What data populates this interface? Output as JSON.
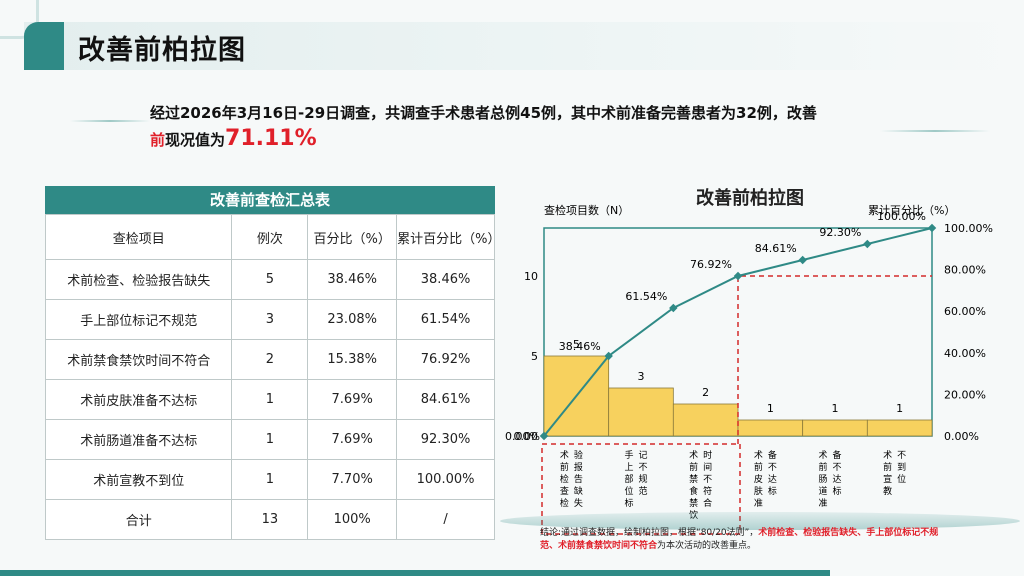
{
  "slide": {
    "title": "改善前柏拉图",
    "intro_main": "经过2026年3月16日-29日调查，共调查手术患者总例45例，其中术前准备完善患者为32例，改善",
    "intro_red": "前",
    "intro_mid": "现况值为",
    "intro_value": "71.11%"
  },
  "table": {
    "caption": "改善前查检汇总表",
    "headers": [
      "查检项目",
      "例次",
      "百分比（%）",
      "累计百分比（%）"
    ],
    "rows": [
      [
        "术前检查、检验报告缺失",
        "5",
        "38.46%",
        "38.46%"
      ],
      [
        "手上部位标记不规范",
        "3",
        "23.08%",
        "61.54%"
      ],
      [
        "术前禁食禁饮时间不符合",
        "2",
        "15.38%",
        "76.92%"
      ],
      [
        "术前皮肤准备不达标",
        "1",
        "7.69%",
        "84.61%"
      ],
      [
        "术前肠道准备不达标",
        "1",
        "7.69%",
        "92.30%"
      ],
      [
        "术前宣教不到位",
        "1",
        "7.70%",
        "100.00%"
      ],
      [
        "合计",
        "13",
        "100%",
        "/"
      ]
    ]
  },
  "chart_data": {
    "type": "bar",
    "title": "改善前柏拉图",
    "ylabel": "查检项目数（N）",
    "y2label": "累计百分比（%）",
    "categories": [
      "术前检查、检验报告缺失",
      "手上部位标记不规范",
      "术前禁食禁饮时间不符合",
      "术前皮肤准备不达标",
      "术前肠道准备不达标",
      "术前宣教不到位"
    ],
    "values": [
      5,
      3,
      2,
      1,
      1,
      1
    ],
    "cumulative_pct": [
      0,
      38.46,
      61.54,
      76.92,
      84.61,
      92.3,
      100.0
    ],
    "cumulative_labels": [
      "0.00%",
      "38.46%",
      "61.54%",
      "76.92%",
      "84.61%",
      "92.30%",
      "100.00%"
    ],
    "ylim": [
      0,
      13
    ],
    "y_ticks": [
      "0.00",
      "5",
      "10"
    ],
    "y2lim": [
      0,
      100
    ],
    "y2_ticks": [
      "0.00%",
      "20.00%",
      "40.00%",
      "60.00%",
      "80.00%",
      "100.00%"
    ],
    "threshold_pct": 76.92,
    "bar_color": "#f7d15e",
    "line_color": "#2f8a86",
    "highlight_color": "#d42a2a"
  },
  "conclusion": {
    "prefix": "结论:通过调查数据，绘制柏拉图，根据“80/20法则”，",
    "highlight": "术前检查、检验报告缺失、手上部位标记不规范、术前禁食禁饮时间不符合",
    "suffix": "为本次活动的改善重点。"
  }
}
